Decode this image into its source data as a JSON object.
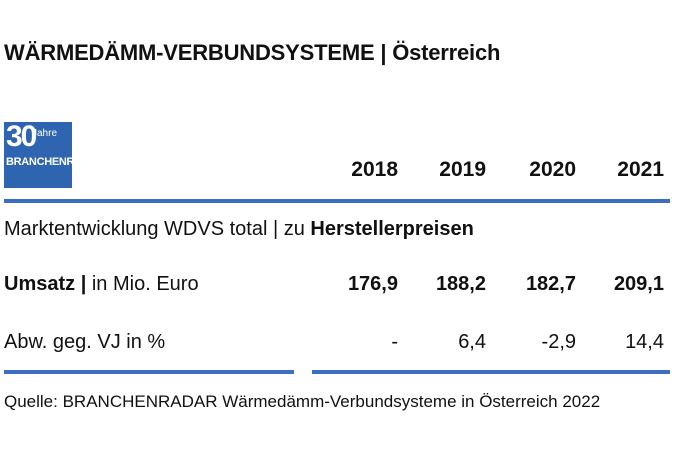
{
  "title": "WÄRMEDÄMM-VERBUNDSYSTEME | Österreich",
  "logo": {
    "number": "30",
    "jahre": "Jahre",
    "brand": "BRANCHENRADAR"
  },
  "chart_data": {
    "type": "table",
    "columns": [
      "2018",
      "2019",
      "2020",
      "2021"
    ],
    "section": {
      "prefix": "Marktentwicklung WDVS total | zu ",
      "emphasis": "Herstellerpreisen"
    },
    "rows": [
      {
        "label_bold": "Umsatz |",
        "label_rest": " in Mio. Euro",
        "values": [
          "176,9",
          "188,2",
          "182,7",
          "209,1"
        ]
      },
      {
        "label": "Abw. geg. VJ in %",
        "values": [
          "-",
          "6,4",
          "-2,9",
          "14,4"
        ]
      }
    ]
  },
  "colors": {
    "accent": "#3a6fc2",
    "logo_bg": "#2f64b1"
  },
  "source": "Quelle: BRANCHENRADAR Wärmedämm-Verbundsysteme in Österreich 2022"
}
